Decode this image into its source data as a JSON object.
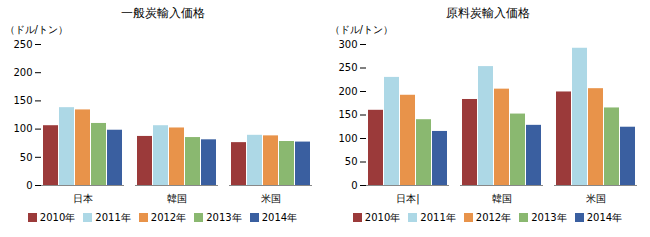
{
  "chart_data": [
    {
      "type": "bar",
      "title": "一般炭輸入価格",
      "ylabel": "（ドル/トン）",
      "categories": [
        "日本",
        "韓国",
        "米国"
      ],
      "series": [
        {
          "name": "2010年",
          "color": "#9B3A3A",
          "values": [
            106,
            87,
            76
          ]
        },
        {
          "name": "2011年",
          "color": "#ADD8E6",
          "values": [
            138,
            106,
            89
          ]
        },
        {
          "name": "2012年",
          "color": "#E8934A",
          "values": [
            134,
            102,
            88
          ]
        },
        {
          "name": "2013年",
          "color": "#8AB870",
          "values": [
            110,
            85,
            78
          ]
        },
        {
          "name": "2014年",
          "color": "#3A5FA0",
          "values": [
            98,
            81,
            77
          ]
        }
      ],
      "ylim": [
        0,
        250
      ],
      "yticks": [
        0,
        50,
        100,
        150,
        200,
        250
      ],
      "grid": false,
      "legend": "bottom"
    },
    {
      "type": "bar",
      "title": "原料炭輸入価格",
      "ylabel": "（ドル/トン）",
      "categories": [
        "日本|",
        "韓国",
        "米国"
      ],
      "series": [
        {
          "name": "2010年",
          "color": "#9B3A3A",
          "values": [
            160,
            183,
            199
          ]
        },
        {
          "name": "2011年",
          "color": "#ADD8E6",
          "values": [
            230,
            253,
            292
          ]
        },
        {
          "name": "2012年",
          "color": "#E8934A",
          "values": [
            192,
            205,
            206
          ]
        },
        {
          "name": "2013年",
          "color": "#8AB870",
          "values": [
            140,
            152,
            165
          ]
        },
        {
          "name": "2014年",
          "color": "#3A5FA0",
          "values": [
            115,
            128,
            124
          ]
        }
      ],
      "ylim": [
        0,
        300
      ],
      "yticks": [
        0,
        50,
        100,
        150,
        200,
        250,
        300
      ],
      "grid": false,
      "legend": "bottom"
    }
  ]
}
